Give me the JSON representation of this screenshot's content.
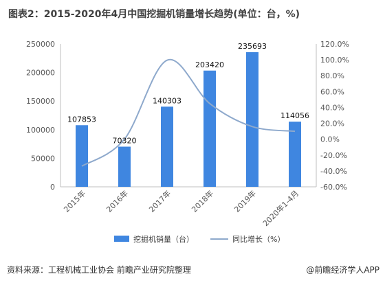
{
  "title": "图表2：2015-2020年4月中国挖掘机销量增长趋势(单位：台，%)",
  "source": "资料来源：工程机械工业协会 前瞻产业研究院整理",
  "brand": "@前瞻经济学人APP",
  "colors": {
    "bar": "#3F86E0",
    "line": "#8EA9CC",
    "axis": "#BFBFBF"
  },
  "chart_data": {
    "type": "bar",
    "categories": [
      "2015年",
      "2016年",
      "2017年",
      "2018年",
      "2019年",
      "2020年1-4月"
    ],
    "series": [
      {
        "name": "挖掘机销量（台）",
        "type": "bar",
        "axis": "left",
        "values": [
          107853,
          70320,
          140303,
          203420,
          235693,
          114056
        ]
      },
      {
        "name": "同比增长（%）",
        "type": "line",
        "axis": "right",
        "smooth": true,
        "values": [
          -34.0,
          0.0,
          99.5,
          45.0,
          15.9,
          10.0
        ]
      }
    ],
    "y_left": {
      "min": 0,
      "max": 250000,
      "ticks": [
        "0",
        "50000",
        "100000",
        "150000",
        "200000",
        "250000"
      ]
    },
    "y_right": {
      "min": -60,
      "max": 120,
      "ticks": [
        "-60.0%",
        "-40.0%",
        "-20.0%",
        "0.0%",
        "20.0%",
        "40.0%",
        "60.0%",
        "80.0%",
        "100.0%",
        "120.0%"
      ]
    },
    "data_labels": [
      "107853",
      "70320",
      "140303",
      "203420",
      "235693",
      "114056"
    ],
    "grid": false,
    "legend": "bottom"
  }
}
